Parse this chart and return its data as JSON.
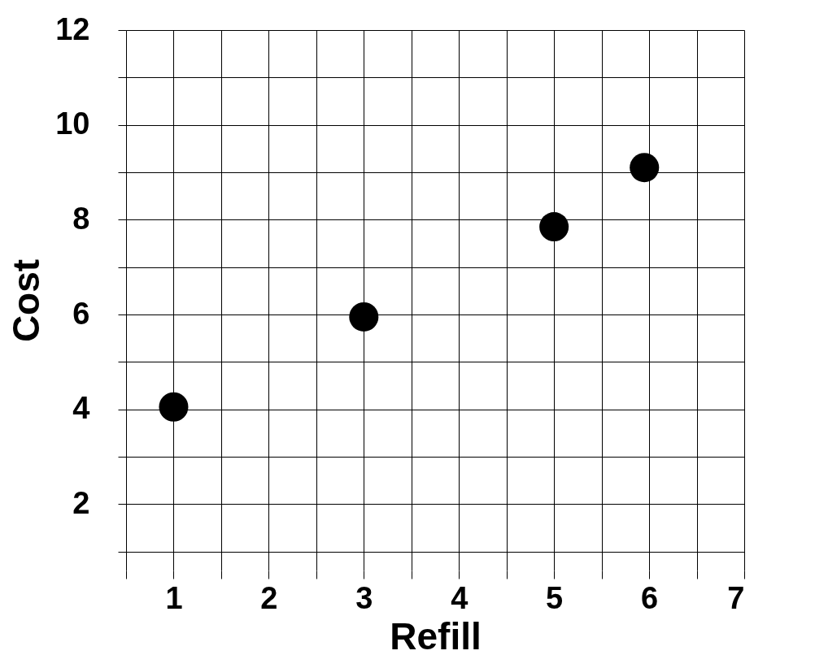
{
  "chart_data": {
    "type": "scatter",
    "xlabel": "Refill",
    "ylabel": "Cost",
    "x": [
      1,
      3,
      5,
      5.95
    ],
    "series": [
      {
        "color": "#000000",
        "values": [
          4.05,
          5.95,
          7.85,
          9.1
        ]
      }
    ],
    "xlim": [
      0.5,
      7
    ],
    "xticks": [
      {
        "value": 0.5,
        "label": null
      },
      1,
      {
        "value": 1.5,
        "label": null
      },
      2,
      {
        "value": 2.5,
        "label": null
      },
      3,
      {
        "value": 3.5,
        "label": null
      },
      4,
      {
        "value": 4.5,
        "label": null
      },
      5,
      {
        "value": 5.5,
        "label": null
      },
      6,
      {
        "value": 6.5,
        "label": null
      },
      7
    ],
    "ylim": [
      0.6,
      12
    ],
    "yticks": [
      {
        "value": 1,
        "label": null
      },
      2,
      {
        "value": 3,
        "label": null
      },
      4,
      {
        "value": 5,
        "label": null
      },
      6,
      {
        "value": 7,
        "label": null
      },
      8,
      {
        "value": 9,
        "label": null
      },
      10,
      {
        "value": 11,
        "label": null
      },
      12
    ],
    "grid": true,
    "marker": "circle"
  }
}
